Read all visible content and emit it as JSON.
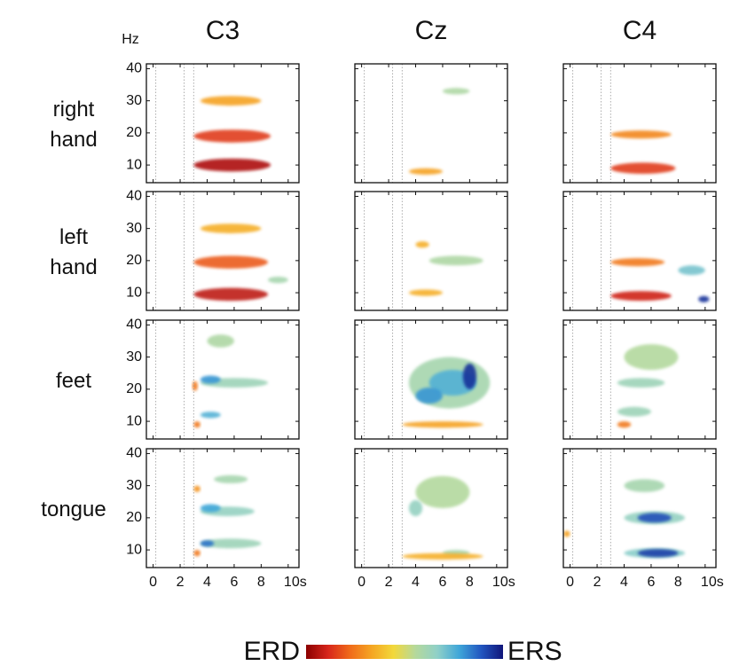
{
  "chart_data": {
    "type": "heatmap-grid",
    "columns": [
      "C3",
      "Cz",
      "C4"
    ],
    "rows": [
      "right hand",
      "left hand",
      "feet",
      "tongue"
    ],
    "y_label": "Hz",
    "xlim": [
      -0.5,
      10.8
    ],
    "ylim": [
      4.5,
      41.5
    ],
    "xticks": [
      0,
      2,
      4,
      6,
      8,
      {
        "value": 10,
        "label": "10s"
      }
    ],
    "yticks": [
      10,
      20,
      30,
      40
    ],
    "event_lines": [
      0.2,
      2.3,
      3
    ],
    "colorscale": [
      "#8b0000",
      "#d7261b",
      "#f06a1a",
      "#f5a623",
      "#f2d83b",
      "#b5d99c",
      "#8fd0c8",
      "#3fa6d9",
      "#2256c0",
      "#10157a"
    ],
    "colorbar": {
      "labels": [
        "ERD",
        "ERS"
      ]
    },
    "panels": [
      [
        {
          "blobs": [
            {
              "x": [
                3.5,
                8
              ],
              "y": 30,
              "h": 3,
              "value": -0.35
            },
            {
              "x": [
                3,
                8.7
              ],
              "y": 19,
              "h": 4,
              "value": -0.7
            },
            {
              "x": [
                3,
                8.7
              ],
              "y": 10,
              "h": 4,
              "value": -0.9
            }
          ]
        },
        {
          "blobs": [
            {
              "x": [
                6,
                8
              ],
              "y": 33,
              "h": 2,
              "value": 0.15
            },
            {
              "x": [
                3.5,
                6
              ],
              "y": 8,
              "h": 2,
              "value": -0.35
            }
          ]
        },
        {
          "blobs": [
            {
              "x": [
                3,
                7.5
              ],
              "y": 19.5,
              "h": 2.5,
              "value": -0.45
            },
            {
              "x": [
                3,
                7.8
              ],
              "y": 9,
              "h": 3.5,
              "value": -0.7
            }
          ]
        }
      ],
      [
        {
          "blobs": [
            {
              "x": [
                8.5,
                10
              ],
              "y": 14,
              "h": 2,
              "value": 0.2
            },
            {
              "x": [
                3.5,
                8
              ],
              "y": 30,
              "h": 3,
              "value": -0.3
            },
            {
              "x": [
                3,
                8.5
              ],
              "y": 19.5,
              "h": 4,
              "value": -0.6
            },
            {
              "x": [
                3,
                8.5
              ],
              "y": 9.5,
              "h": 4,
              "value": -0.85
            }
          ]
        },
        {
          "blobs": [
            {
              "x": [
                5,
                9
              ],
              "y": 20,
              "h": 3,
              "value": 0.15
            },
            {
              "x": [
                4,
                5
              ],
              "y": 25,
              "h": 2,
              "value": -0.3
            },
            {
              "x": [
                3.5,
                6
              ],
              "y": 10,
              "h": 2,
              "value": -0.3
            }
          ]
        },
        {
          "blobs": [
            {
              "x": [
                8,
                10
              ],
              "y": 17,
              "h": 3,
              "value": 0.4
            },
            {
              "x": [
                9.5,
                10.3
              ],
              "y": 8,
              "h": 2,
              "value": 0.9
            },
            {
              "x": [
                3,
                7
              ],
              "y": 19.5,
              "h": 2.5,
              "value": -0.5
            },
            {
              "x": [
                3,
                7.5
              ],
              "y": 9,
              "h": 3,
              "value": -0.8
            }
          ]
        }
      ],
      [
        {
          "blobs": [
            {
              "x": [
                4,
                6
              ],
              "y": 35,
              "h": 4,
              "value": 0.15
            },
            {
              "x": [
                3.5,
                8.5
              ],
              "y": 22,
              "h": 3,
              "value": 0.25
            },
            {
              "x": [
                3.5,
                5
              ],
              "y": 23,
              "h": 2.5,
              "value": 0.6
            },
            {
              "x": [
                3.5,
                5
              ],
              "y": 12,
              "h": 2,
              "value": 0.5
            },
            {
              "x": [
                2.9,
                3.3
              ],
              "y": 21,
              "h": 3,
              "value": -0.5
            },
            {
              "x": [
                3,
                3.5
              ],
              "y": 9,
              "h": 2,
              "value": -0.5
            }
          ]
        },
        {
          "blobs": [
            {
              "x": [
                3.5,
                9.5
              ],
              "y": 22,
              "h": 16,
              "value": 0.2
            },
            {
              "x": [
                5,
                8.5
              ],
              "y": 22,
              "h": 8,
              "value": 0.5
            },
            {
              "x": [
                4,
                6
              ],
              "y": 18,
              "h": 5,
              "value": 0.6
            },
            {
              "x": [
                7.5,
                8.5
              ],
              "y": 24,
              "h": 8,
              "value": 0.9
            },
            {
              "x": [
                3,
                9
              ],
              "y": 9,
              "h": 2,
              "value": -0.35
            }
          ]
        },
        {
          "blobs": [
            {
              "x": [
                4,
                8
              ],
              "y": 30,
              "h": 8,
              "value": 0.12
            },
            {
              "x": [
                3.5,
                7
              ],
              "y": 22,
              "h": 3,
              "value": 0.25
            },
            {
              "x": [
                3.5,
                6
              ],
              "y": 13,
              "h": 3,
              "value": 0.25
            },
            {
              "x": [
                3.5,
                4.5
              ],
              "y": 9,
              "h": 2,
              "value": -0.5
            }
          ]
        }
      ],
      [
        {
          "blobs": [
            {
              "x": [
                4.5,
                7
              ],
              "y": 32,
              "h": 2.5,
              "value": 0.2
            },
            {
              "x": [
                3.5,
                7.5
              ],
              "y": 22,
              "h": 3,
              "value": 0.3
            },
            {
              "x": [
                3.5,
                5
              ],
              "y": 23,
              "h": 2.5,
              "value": 0.55
            },
            {
              "x": [
                3.5,
                8
              ],
              "y": 12,
              "h": 3,
              "value": 0.25
            },
            {
              "x": [
                3.5,
                4.5
              ],
              "y": 12,
              "h": 2,
              "value": 0.7
            },
            {
              "x": [
                3,
                3.5
              ],
              "y": 9,
              "h": 2,
              "value": -0.5
            },
            {
              "x": [
                3,
                3.5
              ],
              "y": 29,
              "h": 2,
              "value": -0.4
            }
          ]
        },
        {
          "blobs": [
            {
              "x": [
                4,
                8
              ],
              "y": 28,
              "h": 10,
              "value": 0.12
            },
            {
              "x": [
                3.5,
                4.5
              ],
              "y": 23,
              "h": 5,
              "value": 0.3
            },
            {
              "x": [
                6,
                8
              ],
              "y": 9,
              "h": 2,
              "value": 0.2
            },
            {
              "x": [
                3,
                9
              ],
              "y": 8,
              "h": 2,
              "value": -0.3
            }
          ]
        },
        {
          "blobs": [
            {
              "x": [
                4,
                7
              ],
              "y": 30,
              "h": 4,
              "value": 0.2
            },
            {
              "x": [
                4,
                8.5
              ],
              "y": 20,
              "h": 4,
              "value": 0.3
            },
            {
              "x": [
                5,
                7.5
              ],
              "y": 20,
              "h": 3,
              "value": 0.8
            },
            {
              "x": [
                4,
                8.5
              ],
              "y": 9,
              "h": 3,
              "value": 0.35
            },
            {
              "x": [
                5,
                8
              ],
              "y": 9,
              "h": 2.5,
              "value": 0.85
            },
            {
              "x": [
                -0.5,
                0
              ],
              "y": 15,
              "h": 2,
              "value": -0.35
            }
          ]
        }
      ]
    ]
  }
}
